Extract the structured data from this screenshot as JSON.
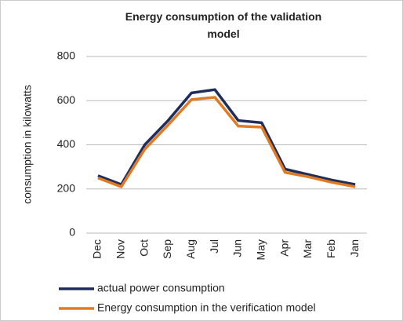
{
  "chart_data": {
    "type": "line",
    "title": "Energy consumption of the validation model",
    "y_label": "consumption in kilowatts",
    "categories": [
      "Dec",
      "Nov",
      "Oct",
      "Sep",
      "Aug",
      "Jul",
      "Jun",
      "May",
      "Apr",
      "Mar",
      "Feb",
      "Jan"
    ],
    "series": [
      {
        "name": "actual power consumption",
        "color": "#1f2d5c",
        "values": [
          260,
          220,
          400,
          510,
          635,
          650,
          510,
          500,
          290,
          265,
          240,
          220
        ]
      },
      {
        "name": "Energy consumption in the verification model",
        "color": "#e07b24",
        "values": [
          250,
          210,
          380,
          490,
          605,
          615,
          485,
          480,
          275,
          255,
          230,
          210
        ]
      }
    ],
    "ylim": [
      0,
      800
    ],
    "yticks": [
      0,
      200,
      400,
      600,
      800
    ],
    "grid": true
  }
}
